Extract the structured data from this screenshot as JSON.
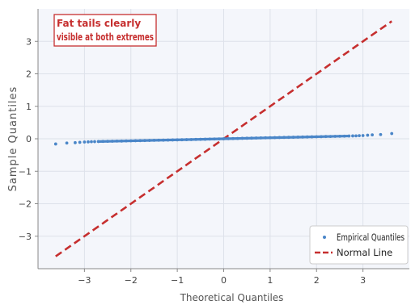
{
  "chart_data": {
    "type": "scatter",
    "title": "",
    "xlabel": "Theoretical Quantiles",
    "ylabel": "Sample Quantiles",
    "xlim": [
      -4.0,
      4.0
    ],
    "ylim": [
      -4.0,
      4.0
    ],
    "x_ticks": [
      -3,
      -2,
      -1,
      0,
      1,
      2,
      3
    ],
    "y_ticks": [
      -3,
      -2,
      -1,
      0,
      1,
      2,
      3
    ],
    "x_tick_labels": [
      "−3",
      "−2",
      "−1",
      "0",
      "1",
      "2",
      "3"
    ],
    "y_tick_labels": [
      "−3",
      "−2",
      "−1",
      "0",
      "1",
      "2",
      "3"
    ],
    "grid": true,
    "legend_position": "lower-right",
    "series": [
      {
        "name": "Empirical Quantiles",
        "kind": "scatter",
        "color": "#4a86c8",
        "points": [
          [
            -3.62,
            -0.16
          ],
          [
            -3.38,
            -0.13
          ],
          [
            -3.2,
            -0.12
          ],
          [
            -3.1,
            -0.11
          ],
          [
            -3.0,
            -0.1
          ],
          [
            -2.92,
            -0.095
          ],
          [
            -2.85,
            -0.09
          ],
          [
            -2.78,
            -0.088
          ],
          [
            -2.7,
            -0.085
          ],
          [
            -2.6,
            -0.08
          ],
          [
            -2.5,
            -0.078
          ],
          [
            -2.4,
            -0.075
          ],
          [
            -2.3,
            -0.072
          ],
          [
            -2.2,
            -0.07
          ],
          [
            -2.1,
            -0.066
          ],
          [
            -2.0,
            -0.063
          ],
          [
            -1.9,
            -0.06
          ],
          [
            -1.8,
            -0.057
          ],
          [
            -1.7,
            -0.054
          ],
          [
            -1.6,
            -0.051
          ],
          [
            -1.5,
            -0.048
          ],
          [
            -1.4,
            -0.045
          ],
          [
            -1.3,
            -0.042
          ],
          [
            -1.2,
            -0.039
          ],
          [
            -1.1,
            -0.036
          ],
          [
            -1.0,
            -0.033
          ],
          [
            -0.9,
            -0.03
          ],
          [
            -0.8,
            -0.027
          ],
          [
            -0.7,
            -0.024
          ],
          [
            -0.6,
            -0.02
          ],
          [
            -0.5,
            -0.017
          ],
          [
            -0.4,
            -0.014
          ],
          [
            -0.3,
            -0.01
          ],
          [
            -0.2,
            -0.007
          ],
          [
            -0.1,
            -0.004
          ],
          [
            0.0,
            0.0
          ],
          [
            0.1,
            0.004
          ],
          [
            0.2,
            0.007
          ],
          [
            0.3,
            0.01
          ],
          [
            0.4,
            0.014
          ],
          [
            0.5,
            0.017
          ],
          [
            0.6,
            0.02
          ],
          [
            0.7,
            0.024
          ],
          [
            0.8,
            0.027
          ],
          [
            0.9,
            0.03
          ],
          [
            1.0,
            0.033
          ],
          [
            1.1,
            0.036
          ],
          [
            1.2,
            0.039
          ],
          [
            1.3,
            0.042
          ],
          [
            1.4,
            0.045
          ],
          [
            1.5,
            0.048
          ],
          [
            1.6,
            0.051
          ],
          [
            1.7,
            0.054
          ],
          [
            1.8,
            0.057
          ],
          [
            1.9,
            0.06
          ],
          [
            2.0,
            0.063
          ],
          [
            2.1,
            0.066
          ],
          [
            2.2,
            0.07
          ],
          [
            2.3,
            0.072
          ],
          [
            2.4,
            0.075
          ],
          [
            2.5,
            0.078
          ],
          [
            2.6,
            0.08
          ],
          [
            2.7,
            0.085
          ],
          [
            2.78,
            0.088
          ],
          [
            2.85,
            0.09
          ],
          [
            2.92,
            0.095
          ],
          [
            3.0,
            0.1
          ],
          [
            3.1,
            0.11
          ],
          [
            3.2,
            0.12
          ],
          [
            3.38,
            0.13
          ],
          [
            3.62,
            0.16
          ]
        ]
      },
      {
        "name": "Normal Line",
        "kind": "line",
        "style": "dashed",
        "color": "#c62f2f",
        "x": [
          -3.62,
          3.62
        ],
        "y": [
          -3.62,
          3.62
        ]
      }
    ],
    "annotation": {
      "text_lines": [
        "Fat tails clearly",
        "visible at both extremes"
      ],
      "position": "top-left",
      "color": "#c62f2f"
    },
    "colors": {
      "plot_background": "#f4f6fb",
      "grid": "#dde1ea",
      "axis": "#888888"
    }
  }
}
